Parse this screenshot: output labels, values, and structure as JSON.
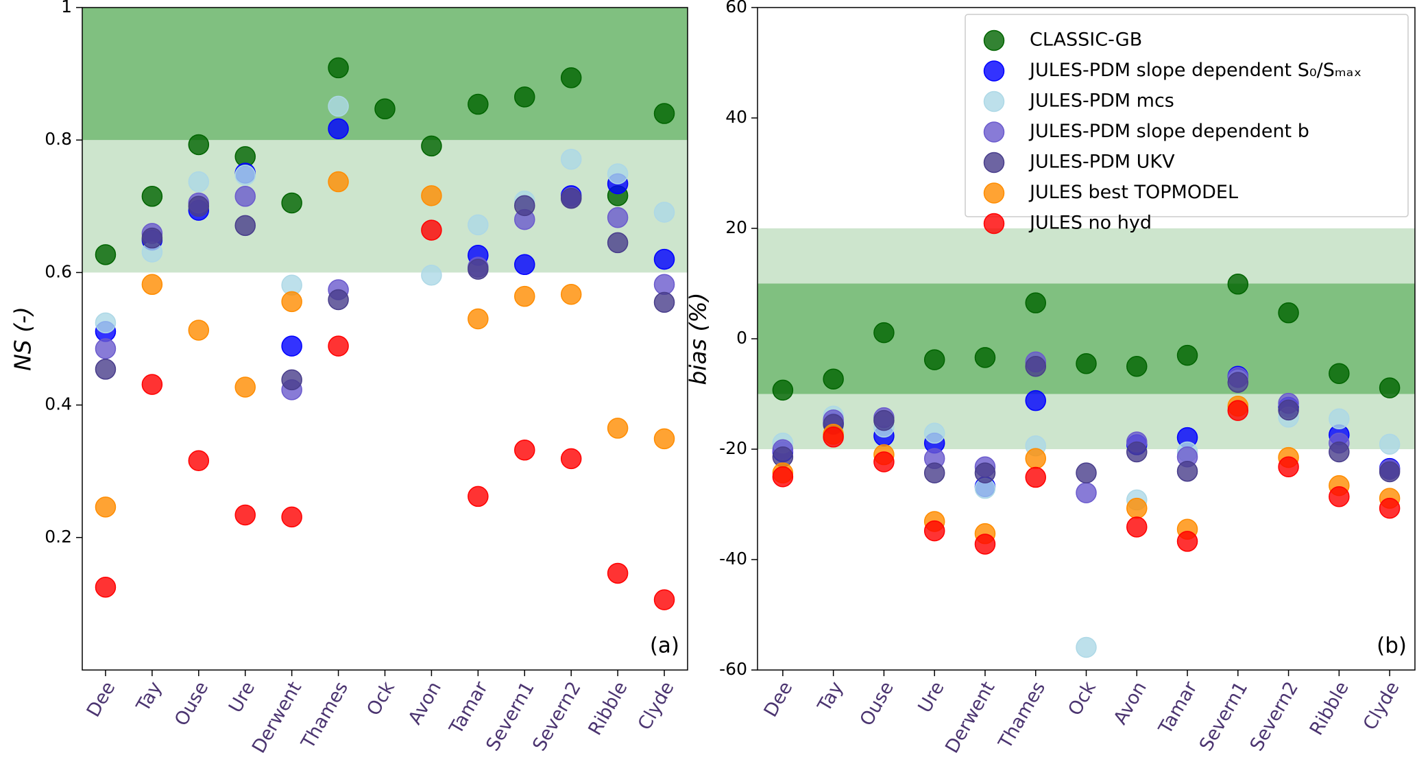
{
  "chart_data": [
    {
      "type": "scatter",
      "y_label": "NS (-)",
      "annotation": "(a)",
      "categories": [
        "Dee",
        "Tay",
        "Ouse",
        "Ure",
        "Derwent",
        "Thames",
        "Ock",
        "Avon",
        "Tamar",
        "Severn1",
        "Severn2",
        "Ribble",
        "Clyde"
      ],
      "ylim": [
        0,
        1
      ],
      "yticks": [
        0.2,
        0.4,
        0.6,
        0.8,
        1
      ],
      "bands": [
        {
          "from": 0.6,
          "to": 0.8,
          "color": "#cde5cd"
        },
        {
          "from": 0.8,
          "to": 1,
          "color": "#80c080"
        }
      ],
      "series": [
        {
          "color": "#006400",
          "values": [
            0.627,
            0.715,
            0.793,
            0.775,
            0.705,
            0.909,
            0.847,
            0.791,
            0.854,
            0.865,
            0.894,
            0.716,
            0.84
          ]
        },
        {
          "color": "#0000ff",
          "values": [
            0.511,
            0.649,
            0.694,
            0.75,
            0.489,
            0.817,
            null,
            null,
            0.626,
            0.612,
            0.716,
            0.734,
            0.62
          ]
        },
        {
          "color": "#add8e6",
          "values": [
            0.524,
            0.631,
            0.737,
            0.747,
            0.581,
            0.851,
            null,
            0.596,
            0.672,
            0.708,
            0.771,
            0.749,
            0.691
          ]
        },
        {
          "color": "#6a5acd",
          "values": [
            0.485,
            0.659,
            0.705,
            0.715,
            0.423,
            0.574,
            null,
            null,
            0.608,
            0.68,
            0.713,
            0.683,
            0.582
          ]
        },
        {
          "color": "#483d8b",
          "values": [
            0.454,
            0.652,
            0.7,
            0.671,
            0.438,
            0.559,
            null,
            null,
            0.605,
            0.701,
            0.712,
            0.645,
            0.555
          ]
        },
        {
          "color": "#ff8c00",
          "values": [
            0.246,
            0.582,
            0.513,
            0.427,
            0.556,
            0.737,
            null,
            0.716,
            0.53,
            0.564,
            0.567,
            0.365,
            0.349
          ]
        },
        {
          "color": "#ff0000",
          "values": [
            0.125,
            0.431,
            0.316,
            0.234,
            0.231,
            0.489,
            null,
            0.664,
            0.262,
            0.332,
            0.319,
            0.146,
            0.106
          ]
        }
      ]
    },
    {
      "type": "scatter",
      "y_label": "bias (%)",
      "annotation": "(b)",
      "legend": "upper right",
      "categories": [
        "Dee",
        "Tay",
        "Ouse",
        "Ure",
        "Derwent",
        "Thames",
        "Ock",
        "Avon",
        "Tamar",
        "Severn1",
        "Severn2",
        "Ribble",
        "Clyde"
      ],
      "ylim": [
        -60,
        60
      ],
      "yticks": [
        -60,
        -40,
        -20,
        0,
        20,
        40,
        60
      ],
      "bands": [
        {
          "from": -20,
          "to": 20,
          "color": "#cde5cd"
        },
        {
          "from": -10,
          "to": 10,
          "color": "#80c080"
        }
      ],
      "series": [
        {
          "name": "CLASSIC-GB",
          "color": "#006400",
          "values": [
            -9.3,
            -7.3,
            1.1,
            -3.8,
            -3.4,
            6.5,
            -4.5,
            -5.0,
            -3.0,
            9.9,
            4.7,
            -6.3,
            -8.9
          ]
        },
        {
          "name": "JULES-PDM slope dependent S₀/Sₘₐₓ",
          "color": "#0000ff",
          "values": [
            -20.5,
            -15.3,
            -17.6,
            -18.9,
            -26.8,
            -11.2,
            null,
            -19.2,
            -17.9,
            -6.8,
            -12.4,
            -17.4,
            -23.5
          ]
        },
        {
          "name": "JULES-PDM mcs",
          "color": "#add8e6",
          "values": [
            -18.9,
            -14.0,
            -16.0,
            -17.1,
            -27.1,
            -19.4,
            -55.9,
            -29.2,
            -20.5,
            -7.5,
            -14.2,
            -14.5,
            -19.1
          ]
        },
        {
          "name": "JULES-PDM slope dependent b",
          "color": "#6a5acd",
          "values": [
            -20.1,
            -14.7,
            -14.3,
            -21.7,
            -23.2,
            -4.2,
            -27.9,
            -18.7,
            -21.4,
            -7.0,
            -11.7,
            -18.9,
            -23.7
          ]
        },
        {
          "name": "JULES-PDM UKV",
          "color": "#483d8b",
          "values": [
            -21.4,
            -15.5,
            -14.8,
            -24.3,
            -24.3,
            -5.0,
            -24.3,
            -20.5,
            -24.0,
            -7.9,
            -12.9,
            -20.5,
            -24.1
          ]
        },
        {
          "name": "JULES best TOPMODEL",
          "color": "#ff8c00",
          "values": [
            -24.3,
            -17.3,
            -21.0,
            -33.1,
            -35.3,
            -21.7,
            null,
            -30.7,
            -34.5,
            -12.2,
            -21.5,
            -26.6,
            -28.9
          ]
        },
        {
          "name": "JULES no hyd",
          "color": "#ff0000",
          "values": [
            -25.0,
            -17.8,
            -22.3,
            -34.8,
            -37.2,
            -25.1,
            null,
            -34.1,
            -36.7,
            -13.0,
            -23.2,
            -28.6,
            -30.7
          ]
        }
      ]
    }
  ]
}
